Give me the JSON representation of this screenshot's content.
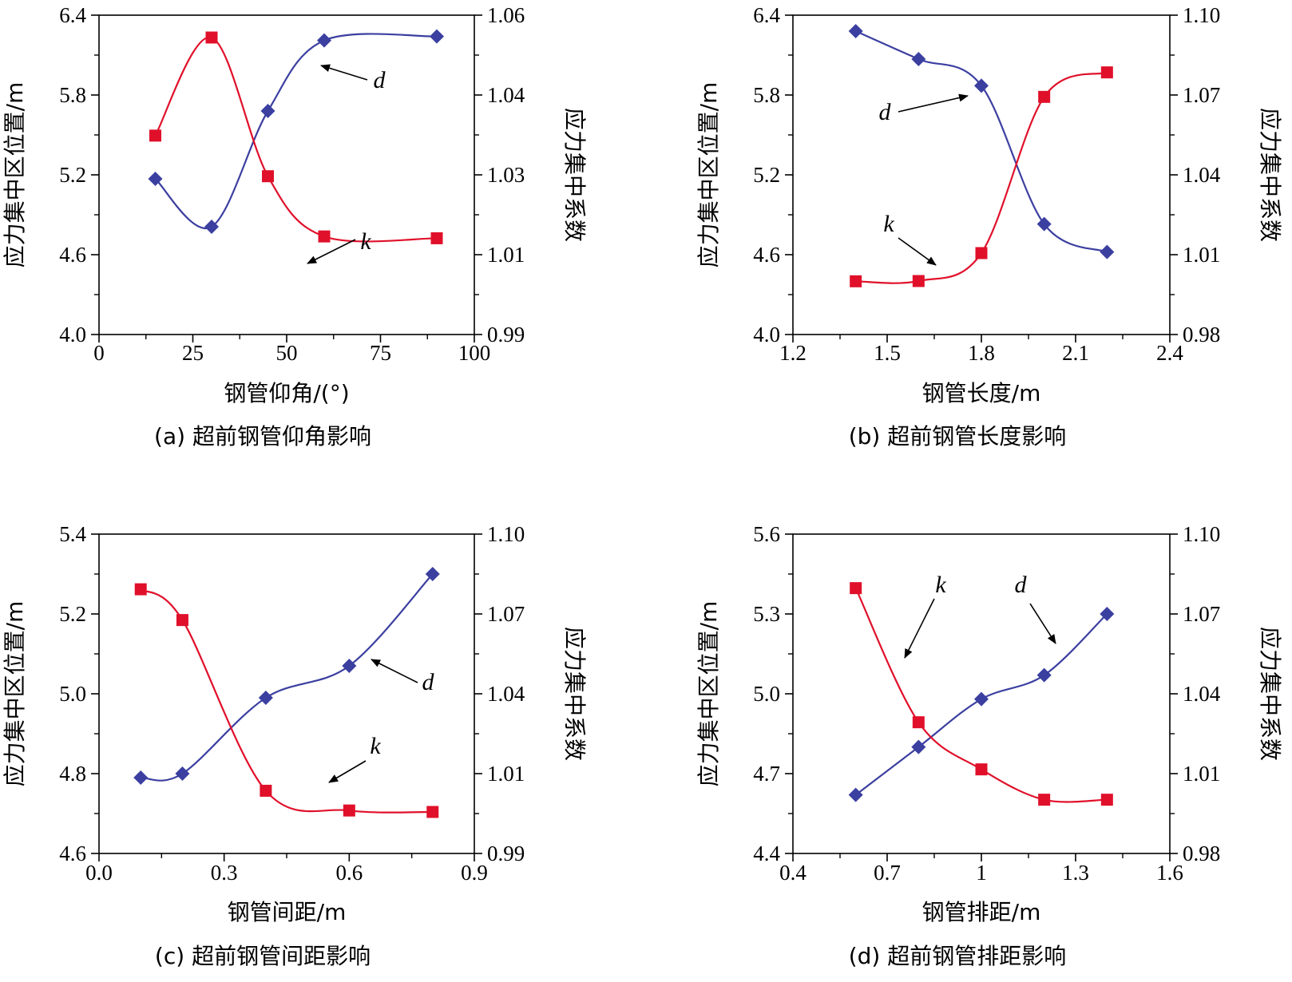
{
  "colors": {
    "d": "#3b3fa0",
    "k": "#e0102a",
    "axis": "#000000"
  },
  "chart_data": [
    {
      "type": "line",
      "caption": "(a) 超前钢管仰角影响",
      "xlabel": "钢管仰角/(°)",
      "ylabel": "应力集中区位置/m",
      "y2label": "应力集中系数",
      "xlim": [
        0,
        100
      ],
      "ylim": [
        4.0,
        6.4
      ],
      "y2lim": [
        0.99,
        1.06
      ],
      "xticks": [
        "0",
        "25",
        "50",
        "75",
        "100"
      ],
      "yticks": [
        "4.0",
        "4.6",
        "5.2",
        "5.8",
        "6.4"
      ],
      "y2ticks": [
        "0.99",
        "1.01",
        "1.03",
        "1.04",
        "1.06"
      ],
      "series": [
        {
          "name": "d",
          "axis": "left",
          "marker": "diamond",
          "x": [
            15,
            30,
            45,
            60,
            90
          ],
          "values": [
            5.17,
            4.81,
            5.68,
            6.21,
            6.24
          ]
        },
        {
          "name": "k",
          "axis": "right",
          "marker": "square",
          "x": [
            15,
            30,
            45,
            60,
            90
          ],
          "values": [
            1.0336,
            1.0551,
            1.0247,
            1.0115,
            1.0111
          ]
        }
      ],
      "annotations": [
        {
          "text": "d",
          "series": "d"
        },
        {
          "text": "k",
          "series": "k"
        }
      ]
    },
    {
      "type": "line",
      "caption": "(b) 超前钢管长度影响",
      "xlabel": "钢管长度/m",
      "ylabel": "应力集中区位置/m",
      "y2label": "应力集中系数",
      "xlim": [
        1.2,
        2.4
      ],
      "ylim": [
        4.0,
        6.4
      ],
      "y2lim": [
        0.98,
        1.1
      ],
      "xticks": [
        "1.2",
        "1.5",
        "1.8",
        "2.1",
        "2.4"
      ],
      "yticks": [
        "4.0",
        "4.6",
        "5.2",
        "5.8",
        "6.4"
      ],
      "y2ticks": [
        "0.98",
        "1.01",
        "1.04",
        "1.07",
        "1.10"
      ],
      "series": [
        {
          "name": "d",
          "axis": "left",
          "marker": "diamond",
          "x": [
            1.4,
            1.6,
            1.8,
            2.0,
            2.2
          ],
          "values": [
            6.28,
            6.07,
            5.87,
            4.83,
            4.62
          ]
        },
        {
          "name": "k",
          "axis": "right",
          "marker": "square",
          "x": [
            1.4,
            1.6,
            1.8,
            2.0,
            2.2
          ],
          "values": [
            1.0,
            1.0001,
            1.0106,
            1.0693,
            1.0785
          ]
        }
      ],
      "annotations": [
        {
          "text": "d",
          "series": "d"
        },
        {
          "text": "k",
          "series": "k"
        }
      ]
    },
    {
      "type": "line",
      "caption": "(c) 超前钢管间距影响",
      "xlabel": "钢管间距/m",
      "ylabel": "应力集中区位置/m",
      "y2label": "应力集中系数",
      "xlim": [
        0.0,
        0.9
      ],
      "ylim": [
        4.6,
        5.4
      ],
      "y2lim": [
        0.99,
        1.1
      ],
      "xticks": [
        "0.0",
        "0.3",
        "0.6",
        "0.9"
      ],
      "yticks": [
        "4.6",
        "4.8",
        "5.0",
        "5.2",
        "5.4"
      ],
      "y2ticks": [
        "0.99",
        "1.01",
        "1.04",
        "1.07",
        "1.10"
      ],
      "series": [
        {
          "name": "d",
          "axis": "left",
          "marker": "diamond",
          "x": [
            0.1,
            0.2,
            0.4,
            0.6,
            0.8
          ],
          "values": [
            4.79,
            4.8,
            4.99,
            5.07,
            5.3
          ]
        },
        {
          "name": "k",
          "axis": "right",
          "marker": "square",
          "x": [
            0.1,
            0.2,
            0.4,
            0.6,
            0.8
          ],
          "values": [
            1.081,
            1.0704,
            1.0116,
            1.0048,
            1.0043
          ]
        }
      ],
      "annotations": [
        {
          "text": "d",
          "series": "d"
        },
        {
          "text": "k",
          "series": "k"
        }
      ]
    },
    {
      "type": "line",
      "caption": "(d) 超前钢管排距影响",
      "xlabel": "钢管排距/m",
      "ylabel": "应力集中区位置/m",
      "y2label": "应力集中系数",
      "xlim": [
        0.4,
        1.6
      ],
      "ylim": [
        4.4,
        5.6
      ],
      "y2lim": [
        0.98,
        1.1
      ],
      "xticks": [
        "0.4",
        "0.7",
        "1",
        "1.3",
        "1.6"
      ],
      "yticks": [
        "4.4",
        "4.7",
        "5.0",
        "5.3",
        "5.6"
      ],
      "y2ticks": [
        "0.98",
        "1.01",
        "1.04",
        "1.07",
        "1.10"
      ],
      "series": [
        {
          "name": "d",
          "axis": "left",
          "marker": "diamond",
          "x": [
            0.6,
            0.8,
            1.0,
            1.2,
            1.4
          ],
          "values": [
            4.62,
            4.8,
            4.98,
            5.07,
            5.3
          ]
        },
        {
          "name": "k",
          "axis": "right",
          "marker": "square",
          "x": [
            0.6,
            0.8,
            1.0,
            1.2,
            1.4
          ],
          "values": [
            1.0797,
            1.0293,
            1.0116,
            1.0002,
            1.0002
          ]
        }
      ],
      "annotations": [
        {
          "text": "k",
          "series": "k"
        },
        {
          "text": "d",
          "series": "d"
        }
      ]
    }
  ]
}
